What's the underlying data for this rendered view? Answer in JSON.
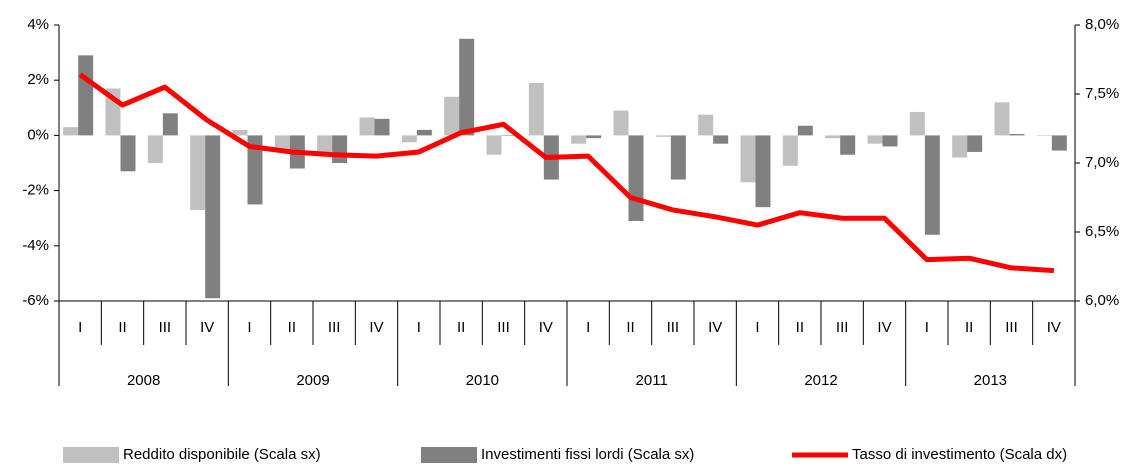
{
  "chart_data": {
    "type": "bar",
    "categories": [
      "I",
      "II",
      "III",
      "IV",
      "I",
      "II",
      "III",
      "IV",
      "I",
      "II",
      "III",
      "IV",
      "I",
      "II",
      "III",
      "IV",
      "I",
      "II",
      "III",
      "IV",
      "I",
      "II",
      "III",
      "IV"
    ],
    "years": [
      "2008",
      "2009",
      "2010",
      "2011",
      "2012",
      "2013"
    ],
    "series": [
      {
        "name": "Reddito disponibile (Scala sx)",
        "color": "#c0c0c0",
        "axis": "y",
        "values": [
          0.3,
          1.7,
          -1.0,
          -2.7,
          0.2,
          -0.6,
          -0.6,
          0.65,
          -0.25,
          1.4,
          -0.7,
          1.9,
          -0.3,
          0.9,
          -0.05,
          0.75,
          -1.7,
          -1.1,
          -0.1,
          -0.3,
          0.85,
          -0.8,
          1.2,
          0.0
        ]
      },
      {
        "name": "Investimenti fissi lordi (Scala sx)",
        "color": "#808080",
        "axis": "y",
        "values": [
          2.9,
          -1.3,
          0.8,
          -5.9,
          -2.5,
          -1.2,
          -1.0,
          0.6,
          0.2,
          3.5,
          0.0,
          -1.6,
          -0.1,
          -3.1,
          -1.6,
          -0.3,
          -2.6,
          0.35,
          -0.7,
          -0.4,
          -3.6,
          -0.6,
          0.05,
          -0.55
        ]
      },
      {
        "name": "Tasso di investimento (Scala dx)",
        "color": "#ff0000",
        "axis": "y2",
        "type": "line",
        "values": [
          7.64,
          7.42,
          7.55,
          7.31,
          7.12,
          7.08,
          7.06,
          7.05,
          7.08,
          7.22,
          7.28,
          7.04,
          7.05,
          6.75,
          6.66,
          6.61,
          6.55,
          6.64,
          6.6,
          6.6,
          6.3,
          6.31,
          6.24,
          6.22
        ]
      }
    ],
    "ylim": [
      -6,
      4
    ],
    "yticks": [
      {
        "value": -6,
        "label": "-6%"
      },
      {
        "value": -4,
        "label": "-4%"
      },
      {
        "value": -2,
        "label": "-2%"
      },
      {
        "value": 0,
        "label": "0%"
      },
      {
        "value": 2,
        "label": "2%"
      },
      {
        "value": 4,
        "label": "4%"
      }
    ],
    "y2lim": [
      6.0,
      8.0
    ],
    "y2ticks": [
      {
        "value": 6.0,
        "label": "6,0%"
      },
      {
        "value": 6.5,
        "label": "6,5%"
      },
      {
        "value": 7.0,
        "label": "7,0%"
      },
      {
        "value": 7.5,
        "label": "7,5%"
      },
      {
        "value": 8.0,
        "label": "8,0%"
      }
    ],
    "grid": false,
    "legend": "bottom"
  }
}
